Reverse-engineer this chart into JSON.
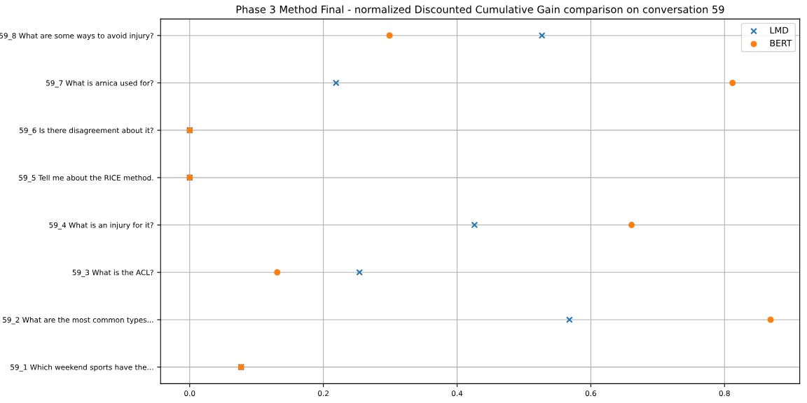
{
  "chart_data": {
    "type": "scatter",
    "orientation": "horizontal",
    "title": "Phase 3 Method Final - normalized Discounted Cumulative Gain comparison on conversation 59",
    "categories": [
      "59_8 What are some ways to avoid injury?",
      "59_7 What is arnica used for?",
      "59_6 Is there disagreement about it?",
      "59_5 Tell me about the RICE method.",
      "59_4 What is an injury for it?",
      "59_3 What is the ACL?",
      "59_2 What are the most common types...",
      "59_1 Which weekend sports have the..."
    ],
    "series": [
      {
        "name": "LMD",
        "color": "#1f77b4",
        "marker": "cross",
        "values": [
          0.527,
          0.219,
          0,
          0,
          0.426,
          0.254,
          0.568,
          0.077
        ]
      },
      {
        "name": "BERT",
        "color": "#ff7f0e",
        "marker": "circle",
        "values": [
          0.299,
          0.812,
          0,
          0,
          0.661,
          0.131,
          0.869,
          0.077
        ]
      }
    ],
    "xlim": [
      -0.0435,
      0.9125
    ],
    "xticks": [
      {
        "value": 0,
        "label": "0.0"
      },
      {
        "value": 0.2,
        "label": "0.2"
      },
      {
        "value": 0.4,
        "label": "0.4"
      },
      {
        "value": 0.6,
        "label": "0.6"
      },
      {
        "value": 0.8,
        "label": "0.8"
      }
    ],
    "grid": true,
    "legend": "top right"
  }
}
